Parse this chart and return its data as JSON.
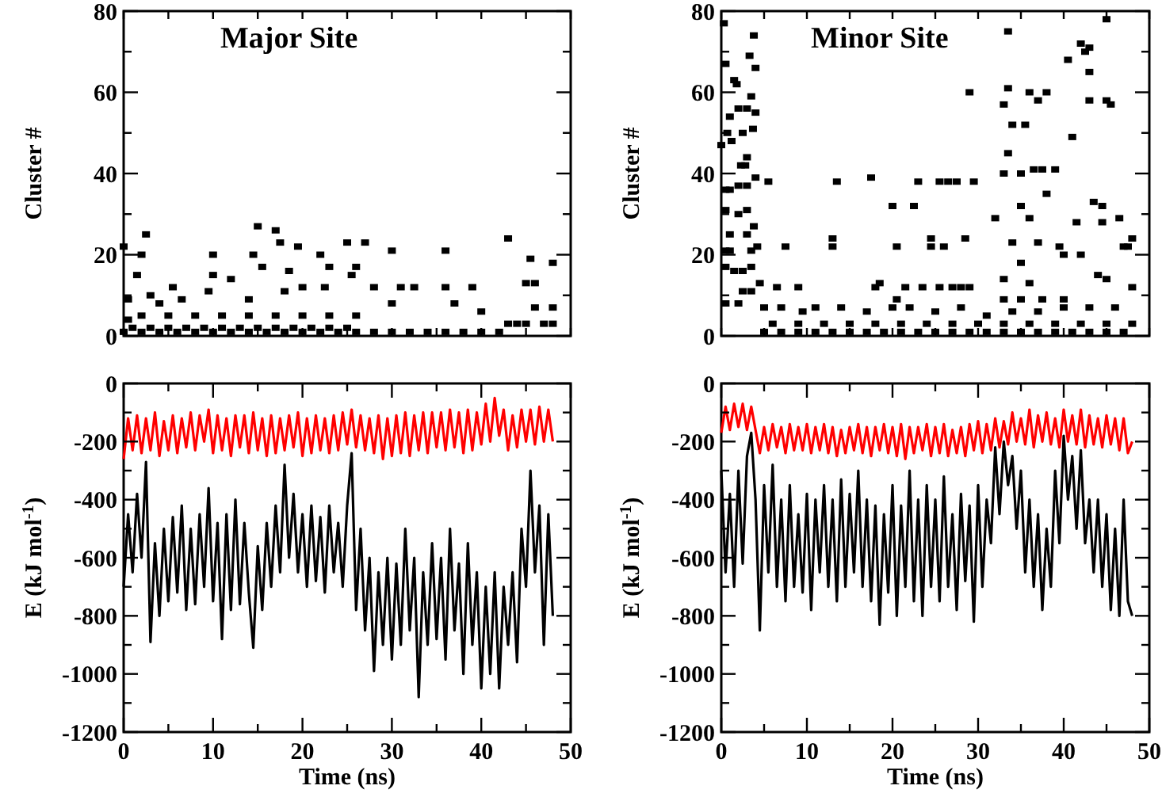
{
  "chart_data": [
    {
      "type": "scatter",
      "title": "Major Site",
      "ylabel": "Cluster #",
      "color": "#000000",
      "marker": "square",
      "tick_labels": "y",
      "xlim": [
        0,
        50
      ],
      "xticks": [
        {
          "value": 0,
          "label": null
        },
        {
          "value": 5,
          "label": null
        },
        {
          "value": 10,
          "label": null
        },
        {
          "value": 15,
          "label": null
        },
        {
          "value": 20,
          "label": null
        },
        {
          "value": 25,
          "label": null
        },
        {
          "value": 30,
          "label": null
        },
        {
          "value": 35,
          "label": null
        },
        {
          "value": 40,
          "label": null
        },
        {
          "value": 45,
          "label": null
        },
        {
          "value": 50,
          "label": null
        }
      ],
      "ylim": [
        0,
        80
      ],
      "yticks": [
        0,
        {
          "value": 10,
          "label": null
        },
        20,
        {
          "value": 30,
          "label": null
        },
        40,
        {
          "value": 50,
          "label": null
        },
        60,
        {
          "value": 70,
          "label": null
        },
        80
      ],
      "x": [
        0,
        2,
        4,
        6,
        8,
        10,
        12,
        14,
        16,
        18,
        20,
        22,
        24,
        26,
        28,
        30,
        32,
        34,
        36,
        38,
        40,
        42,
        1,
        3,
        5,
        7,
        9,
        11,
        13,
        15,
        17,
        19,
        21,
        23,
        25,
        43,
        45,
        47,
        48,
        2,
        5,
        8,
        11,
        14,
        17,
        20,
        23,
        26,
        0,
        0.5,
        0.5,
        1.5,
        2,
        2.5,
        3,
        4,
        5.5,
        6.5,
        10,
        9.5,
        10,
        12,
        14,
        14.5,
        15,
        15.5,
        17,
        17.5,
        18,
        18.5,
        19.5,
        20,
        22,
        22.5,
        23,
        25,
        25.5,
        26,
        27,
        28,
        30,
        30,
        31,
        32.5,
        36,
        36,
        37,
        39,
        40,
        43,
        44,
        45,
        45.5,
        46,
        46,
        48,
        48
      ],
      "values": [
        1,
        1,
        1,
        1,
        1,
        1,
        1,
        1,
        1,
        1,
        1,
        1,
        1,
        1,
        1,
        1,
        1,
        1,
        1,
        1,
        1,
        1,
        2,
        2,
        2,
        2,
        2,
        2,
        2,
        2,
        2,
        2,
        2,
        2,
        2,
        3,
        3,
        3,
        3,
        5,
        5,
        5,
        5,
        5,
        5,
        5,
        5,
        5,
        22,
        9,
        4,
        15,
        20,
        25,
        10,
        8,
        12,
        9,
        15,
        11,
        20,
        14,
        9,
        20,
        27,
        17,
        26,
        23,
        11,
        16,
        22,
        12,
        20,
        12,
        17,
        23,
        15,
        17,
        23,
        12,
        8,
        21,
        12,
        12,
        21,
        12,
        8,
        12,
        6,
        24,
        3,
        13,
        19,
        7,
        13,
        18,
        7
      ]
    },
    {
      "type": "scatter",
      "title": "Minor Site",
      "ylabel": "Cluster #",
      "color": "#000000",
      "marker": "square",
      "tick_labels": "y",
      "xlim": [
        0,
        50
      ],
      "xticks": [
        {
          "value": 0,
          "label": null
        },
        {
          "value": 5,
          "label": null
        },
        {
          "value": 10,
          "label": null
        },
        {
          "value": 15,
          "label": null
        },
        {
          "value": 20,
          "label": null
        },
        {
          "value": 25,
          "label": null
        },
        {
          "value": 30,
          "label": null
        },
        {
          "value": 35,
          "label": null
        },
        {
          "value": 40,
          "label": null
        },
        {
          "value": 45,
          "label": null
        },
        {
          "value": 50,
          "label": null
        }
      ],
      "ylim": [
        0,
        80
      ],
      "yticks": [
        0,
        {
          "value": 10,
          "label": null
        },
        20,
        {
          "value": 30,
          "label": null
        },
        40,
        {
          "value": 50,
          "label": null
        },
        60,
        {
          "value": 70,
          "label": null
        },
        80
      ],
      "x": [
        0,
        0.3,
        0.5,
        0.7,
        1,
        1.2,
        1.5,
        1.8,
        2,
        2.3,
        2.5,
        3,
        3.3,
        3.8,
        4,
        3.5,
        4,
        3.7,
        3,
        2.8,
        0.5,
        1,
        2,
        3,
        4,
        0.5,
        2,
        3,
        1,
        3,
        3.8,
        0.5,
        1,
        3.5,
        4.2,
        0.5,
        1.5,
        2.5,
        3.5,
        2.5,
        3.5,
        0.5,
        2,
        4.5,
        5.5,
        7.5,
        6.5,
        9,
        13.5,
        13,
        13,
        17.5,
        18,
        18.5,
        20,
        20.5,
        20.5,
        21.5,
        22.5,
        23,
        23.5,
        24.5,
        24.5,
        25.5,
        25.5,
        26,
        26.5,
        27,
        27.5,
        28,
        28.5,
        29,
        29.5,
        29,
        32,
        33,
        33.5,
        33.5,
        33.5,
        33,
        34,
        35,
        35.5,
        35,
        36,
        36,
        36.5,
        37,
        37.5,
        38,
        38,
        39,
        39.5,
        40.5,
        41,
        41.5,
        42,
        42.5,
        43,
        43,
        43,
        43.5,
        44.5,
        44.5,
        45,
        45,
        45.5,
        46.5,
        47,
        47.5,
        48,
        48,
        34,
        35,
        36,
        37,
        40,
        42,
        44,
        45,
        37.5,
        40,
        33,
        33,
        35,
        5,
        7,
        9,
        11,
        13,
        15,
        17,
        19,
        21,
        23,
        25,
        27,
        29,
        31,
        33,
        35,
        37,
        39,
        41,
        43,
        45,
        47,
        6,
        9,
        12,
        15,
        18,
        21,
        24,
        27,
        30,
        33,
        36,
        39,
        42,
        45,
        48,
        5,
        7,
        9.5,
        11,
        14,
        17,
        20,
        22,
        25,
        28,
        31,
        34,
        37,
        40,
        43,
        46
      ],
      "values": [
        47,
        77,
        67,
        50,
        54,
        48,
        63,
        62,
        56,
        42,
        50,
        56,
        69,
        74,
        66,
        59,
        55,
        51,
        44,
        42,
        36,
        36,
        37,
        37,
        39,
        31,
        30,
        31,
        25,
        25,
        27,
        21,
        21,
        21,
        22,
        17,
        16,
        16,
        17,
        11,
        11,
        8,
        8,
        13,
        38,
        22,
        12,
        12,
        38,
        24,
        22,
        39,
        12,
        13,
        32,
        22,
        9,
        12,
        32,
        38,
        12,
        24,
        22,
        38,
        12,
        22,
        38,
        12,
        38,
        12,
        24,
        12,
        38,
        60,
        29,
        57,
        45,
        61,
        75,
        40,
        52,
        40,
        52,
        32,
        60,
        29,
        41,
        58,
        41,
        35,
        60,
        41,
        22,
        68,
        49,
        28,
        72,
        70,
        58,
        71,
        65,
        33,
        28,
        32,
        58,
        78,
        57,
        29,
        22,
        22,
        24,
        12,
        23,
        18,
        13,
        23,
        20,
        20,
        15,
        14,
        9,
        9,
        14,
        9,
        9,
        1,
        1,
        1,
        1,
        1,
        1,
        1,
        1,
        1,
        1,
        1,
        1,
        1,
        1,
        1,
        1,
        1,
        1,
        1,
        1,
        1,
        1,
        3,
        3,
        3,
        3,
        3,
        3,
        3,
        3,
        3,
        3,
        3,
        3,
        3,
        3,
        3,
        7,
        7,
        6,
        7,
        7,
        6,
        7,
        7,
        6,
        7,
        5,
        6,
        6,
        7,
        7,
        7
      ]
    },
    {
      "type": "line",
      "xlabel": "Time (ns)",
      "ylabel": "E (kJ mol$^{-1}$)",
      "xlim": [
        0,
        50
      ],
      "xticks": [
        0,
        {
          "value": 5,
          "label": null
        },
        10,
        {
          "value": 15,
          "label": null
        },
        20,
        {
          "value": 25,
          "label": null
        },
        30,
        {
          "value": 35,
          "label": null
        },
        40,
        {
          "value": 45,
          "label": null
        },
        50
      ],
      "ylim": [
        -1200,
        0
      ],
      "yticks": [
        -1200,
        {
          "value": -1100,
          "label": null
        },
        -1000,
        {
          "value": -900,
          "label": null
        },
        -800,
        {
          "value": -700,
          "label": null
        },
        -600,
        {
          "value": -500,
          "label": null
        },
        -400,
        {
          "value": -300,
          "label": null
        },
        -200,
        {
          "value": -100,
          "label": null
        },
        0
      ],
      "x": [
        0,
        0.5,
        1,
        1.5,
        2,
        2.5,
        3,
        3.5,
        4,
        4.5,
        5,
        5.5,
        6,
        6.5,
        7,
        7.5,
        8,
        8.5,
        9,
        9.5,
        10,
        10.5,
        11,
        11.5,
        12,
        12.5,
        13,
        13.5,
        14,
        14.5,
        15,
        15.5,
        16,
        16.5,
        17,
        17.5,
        18,
        18.5,
        19,
        19.5,
        20,
        20.5,
        21,
        21.5,
        22,
        22.5,
        23,
        23.5,
        24,
        24.5,
        25,
        25.5,
        26,
        26.5,
        27,
        27.5,
        28,
        28.5,
        29,
        29.5,
        30,
        30.5,
        31,
        31.5,
        32,
        32.5,
        33,
        33.5,
        34,
        34.5,
        35,
        35.5,
        36,
        36.5,
        37,
        37.5,
        38,
        38.5,
        39,
        39.5,
        40,
        40.5,
        41,
        41.5,
        42,
        42.5,
        43,
        43.5,
        44,
        44.5,
        45,
        45.5,
        46,
        46.5,
        47,
        47.5,
        48
      ],
      "series": [
        {
          "color": "#ff0000",
          "values": [
            -260,
            -120,
            -230,
            -110,
            -240,
            -120,
            -230,
            -100,
            -250,
            -130,
            -230,
            -110,
            -240,
            -120,
            -220,
            -100,
            -230,
            -110,
            -200,
            -90,
            -240,
            -110,
            -230,
            -120,
            -250,
            -110,
            -220,
            -110,
            -240,
            -100,
            -230,
            -120,
            -250,
            -110,
            -240,
            -120,
            -230,
            -110,
            -220,
            -100,
            -250,
            -120,
            -240,
            -110,
            -230,
            -120,
            -240,
            -110,
            -230,
            -100,
            -210,
            -90,
            -220,
            -110,
            -230,
            -120,
            -240,
            -110,
            -260,
            -120,
            -250,
            -110,
            -240,
            -100,
            -250,
            -110,
            -230,
            -100,
            -240,
            -100,
            -220,
            -100,
            -230,
            -90,
            -220,
            -100,
            -240,
            -90,
            -230,
            -100,
            -210,
            -70,
            -200,
            -50,
            -180,
            -90,
            -230,
            -110,
            -220,
            -90,
            -200,
            -90,
            -210,
            -80,
            -200,
            -90,
            -200
          ]
        },
        {
          "color": "#000000",
          "values": [
            -700,
            -450,
            -650,
            -380,
            -600,
            -270,
            -890,
            -550,
            -800,
            -500,
            -750,
            -460,
            -720,
            -420,
            -780,
            -500,
            -760,
            -450,
            -700,
            -360,
            -750,
            -480,
            -880,
            -450,
            -780,
            -400,
            -760,
            -480,
            -720,
            -910,
            -560,
            -780,
            -480,
            -700,
            -420,
            -650,
            -280,
            -600,
            -380,
            -650,
            -450,
            -700,
            -420,
            -680,
            -460,
            -720,
            -420,
            -650,
            -480,
            -700,
            -420,
            -240,
            -780,
            -500,
            -850,
            -600,
            -990,
            -650,
            -900,
            -600,
            -950,
            -620,
            -900,
            -500,
            -850,
            -600,
            -1080,
            -650,
            -900,
            -550,
            -880,
            -600,
            -950,
            -500,
            -850,
            -620,
            -1000,
            -550,
            -900,
            -650,
            -1050,
            -700,
            -1000,
            -650,
            -1050,
            -700,
            -900,
            -650,
            -960,
            -500,
            -700,
            -300,
            -650,
            -420,
            -900,
            -450,
            -800
          ]
        }
      ]
    },
    {
      "type": "line",
      "xlabel": "Time (ns)",
      "ylabel": "E (kJ mol$^{-1}$)",
      "xlim": [
        0,
        50
      ],
      "xticks": [
        0,
        {
          "value": 5,
          "label": null
        },
        10,
        {
          "value": 15,
          "label": null
        },
        20,
        {
          "value": 25,
          "label": null
        },
        30,
        {
          "value": 35,
          "label": null
        },
        40,
        {
          "value": 45,
          "label": null
        },
        50
      ],
      "ylim": [
        -1200,
        0
      ],
      "yticks": [
        -1200,
        {
          "value": -1100,
          "label": null
        },
        -1000,
        {
          "value": -900,
          "label": null
        },
        -800,
        {
          "value": -700,
          "label": null
        },
        -600,
        {
          "value": -500,
          "label": null
        },
        -400,
        {
          "value": -300,
          "label": null
        },
        -200,
        {
          "value": -100,
          "label": null
        },
        0
      ],
      "x": [
        0,
        0.5,
        1,
        1.5,
        2,
        2.5,
        3,
        3.5,
        4,
        4.5,
        5,
        5.5,
        6,
        6.5,
        7,
        7.5,
        8,
        8.5,
        9,
        9.5,
        10,
        10.5,
        11,
        11.5,
        12,
        12.5,
        13,
        13.5,
        14,
        14.5,
        15,
        15.5,
        16,
        16.5,
        17,
        17.5,
        18,
        18.5,
        19,
        19.5,
        20,
        20.5,
        21,
        21.5,
        22,
        22.5,
        23,
        23.5,
        24,
        24.5,
        25,
        25.5,
        26,
        26.5,
        27,
        27.5,
        28,
        28.5,
        29,
        29.5,
        30,
        30.5,
        31,
        31.5,
        32,
        32.5,
        33,
        33.5,
        34,
        34.5,
        35,
        35.5,
        36,
        36.5,
        37,
        37.5,
        38,
        38.5,
        39,
        39.5,
        40,
        40.5,
        41,
        41.5,
        42,
        42.5,
        43,
        43.5,
        44,
        44.5,
        45,
        45.5,
        46,
        46.5,
        47,
        47.5,
        48
      ],
      "series": [
        {
          "color": "#ff0000",
          "values": [
            -170,
            -80,
            -160,
            -70,
            -150,
            -70,
            -160,
            -80,
            -160,
            -240,
            -150,
            -230,
            -140,
            -220,
            -150,
            -240,
            -140,
            -230,
            -150,
            -230,
            -140,
            -240,
            -150,
            -230,
            -140,
            -240,
            -150,
            -250,
            -160,
            -240,
            -150,
            -230,
            -140,
            -240,
            -150,
            -250,
            -150,
            -230,
            -140,
            -240,
            -150,
            -250,
            -140,
            -260,
            -150,
            -240,
            -150,
            -230,
            -140,
            -250,
            -150,
            -240,
            -140,
            -250,
            -160,
            -240,
            -150,
            -250,
            -140,
            -230,
            -130,
            -240,
            -140,
            -230,
            -120,
            -220,
            -130,
            -210,
            -100,
            -200,
            -120,
            -210,
            -90,
            -220,
            -110,
            -200,
            -100,
            -210,
            -120,
            -220,
            -90,
            -200,
            -110,
            -210,
            -90,
            -220,
            -110,
            -210,
            -120,
            -220,
            -110,
            -210,
            -120,
            -230,
            -120,
            -240,
            -200
          ]
        },
        {
          "color": "#000000",
          "values": [
            -300,
            -650,
            -380,
            -700,
            -300,
            -620,
            -250,
            -170,
            -400,
            -850,
            -350,
            -650,
            -280,
            -700,
            -400,
            -750,
            -350,
            -700,
            -450,
            -720,
            -380,
            -780,
            -400,
            -650,
            -350,
            -700,
            -400,
            -750,
            -330,
            -700,
            -380,
            -650,
            -300,
            -700,
            -400,
            -750,
            -420,
            -830,
            -450,
            -720,
            -350,
            -800,
            -420,
            -700,
            -300,
            -750,
            -400,
            -800,
            -350,
            -700,
            -400,
            -750,
            -320,
            -700,
            -450,
            -780,
            -380,
            -680,
            -420,
            -820,
            -350,
            -700,
            -400,
            -550,
            -220,
            -450,
            -200,
            -350,
            -250,
            -500,
            -300,
            -650,
            -400,
            -700,
            -450,
            -780,
            -500,
            -700,
            -300,
            -550,
            -180,
            -400,
            -250,
            -500,
            -230,
            -550,
            -400,
            -650,
            -400,
            -700,
            -450,
            -780,
            -500,
            -800,
            -400,
            -750,
            -800
          ]
        }
      ]
    }
  ]
}
